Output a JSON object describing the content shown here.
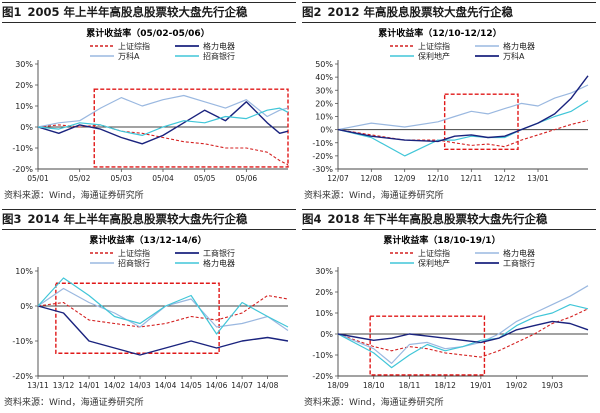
{
  "chart_data": [
    {
      "type": "line",
      "figure_label": "图1",
      "title": "2005 年上半年高股息股票较大盘先行企稳",
      "chart_title": "累计收益率（05/02-05/06）",
      "source": "资料来源：Wind，海通证券研究所",
      "ylim": [
        -20,
        30
      ],
      "yticks": [
        "30%",
        "20%",
        "10%",
        "0%",
        "-10%",
        "-20%"
      ],
      "yticks_values": [
        30,
        20,
        10,
        0,
        -10,
        -20
      ],
      "x_ticks": [
        "05/01",
        "05/02",
        "05/03",
        "05/04",
        "05/05",
        "05/06"
      ],
      "x_range": [
        0,
        6
      ],
      "highlight_x": [
        1.35,
        6.0
      ],
      "highlight_y": [
        -19,
        18
      ],
      "legend": {
        "placement": "top",
        "columns": 2
      },
      "series": [
        {
          "name": "上证综指",
          "color": "#d42020",
          "dash": true,
          "width": 1.1,
          "x": [
            0,
            0.5,
            1.0,
            1.5,
            2.0,
            2.5,
            3.0,
            3.5,
            4.0,
            4.5,
            5.0,
            5.5,
            5.8,
            6.0
          ],
          "values": [
            0,
            1,
            0,
            1,
            -2,
            -3,
            -5,
            -7,
            -8,
            -10,
            -10,
            -12,
            -16,
            -18
          ]
        },
        {
          "name": "格力电器",
          "color": "#1a237e",
          "dash": false,
          "width": 1.4,
          "x": [
            0,
            0.5,
            1.0,
            1.5,
            2.0,
            2.5,
            3.0,
            3.5,
            4.0,
            4.5,
            5.0,
            5.5,
            5.8,
            6.0
          ],
          "values": [
            0,
            -3,
            1,
            -1,
            -5,
            -8,
            -4,
            2,
            8,
            3,
            12,
            2,
            -3,
            -2
          ]
        },
        {
          "name": "万科A",
          "color": "#9ab8e0",
          "dash": false,
          "width": 1.2,
          "x": [
            0,
            0.5,
            1.0,
            1.5,
            2.0,
            2.5,
            3.0,
            3.5,
            4.0,
            4.5,
            5.0,
            5.5,
            5.8,
            6.0
          ],
          "values": [
            0,
            2,
            3,
            9,
            14,
            10,
            13,
            15,
            12,
            9,
            13,
            5,
            8,
            9
          ]
        },
        {
          "name": "招商银行",
          "color": "#40c6d8",
          "dash": false,
          "width": 1.2,
          "x": [
            0,
            0.5,
            1.0,
            1.5,
            2.0,
            2.5,
            3.0,
            3.5,
            4.0,
            4.5,
            5.0,
            5.5,
            5.8,
            6.0
          ],
          "values": [
            0,
            -1,
            2,
            1,
            -2,
            -4,
            0,
            3,
            2,
            5,
            4,
            8,
            9,
            7
          ]
        }
      ]
    },
    {
      "type": "line",
      "figure_label": "图2",
      "title": "2012 年高股息股票较大盘先行企稳",
      "chart_title": "累计收益率（12/10-12/12）",
      "source": "资料来源：Wind，海通证券研究所",
      "ylim": [
        -30,
        50
      ],
      "yticks": [
        "50%",
        "40%",
        "30%",
        "20%",
        "10%",
        "0%",
        "-10%",
        "-20%",
        "-30%"
      ],
      "yticks_values": [
        50,
        40,
        30,
        20,
        10,
        0,
        -10,
        -20,
        -30
      ],
      "x_ticks": [
        "12/07",
        "12/08",
        "12/09",
        "12/10",
        "12/11",
        "12/12",
        "13/01"
      ],
      "x_range": [
        0,
        7.5
      ],
      "highlight_x": [
        3.2,
        5.4
      ],
      "highlight_y": [
        -15,
        27
      ],
      "legend": {
        "placement": "top",
        "columns": 2
      },
      "series": [
        {
          "name": "上证综指",
          "color": "#d42020",
          "dash": true,
          "width": 1.1,
          "x": [
            0,
            1,
            2,
            3,
            3.5,
            4,
            4.5,
            5,
            5.5,
            6,
            6.5,
            7,
            7.5
          ],
          "values": [
            0,
            -4,
            -8,
            -8,
            -10,
            -12,
            -11,
            -13,
            -8,
            -4,
            0,
            4,
            7
          ]
        },
        {
          "name": "格力电器",
          "color": "#9ab8e0",
          "dash": false,
          "width": 1.2,
          "x": [
            0,
            1,
            2,
            3,
            3.5,
            4,
            4.5,
            5,
            5.5,
            6,
            6.5,
            7,
            7.5
          ],
          "values": [
            0,
            5,
            2,
            6,
            10,
            14,
            12,
            16,
            20,
            18,
            24,
            28,
            34
          ]
        },
        {
          "name": "保利地产",
          "color": "#40c6d8",
          "dash": false,
          "width": 1.2,
          "x": [
            0,
            1,
            2,
            3,
            3.5,
            4,
            4.5,
            5,
            5.5,
            6,
            6.5,
            7,
            7.5
          ],
          "values": [
            0,
            -6,
            -20,
            -8,
            -8,
            -5,
            -6,
            -6,
            0,
            5,
            10,
            14,
            22
          ]
        },
        {
          "name": "万科A",
          "color": "#1a237e",
          "dash": false,
          "width": 1.4,
          "x": [
            0,
            1,
            2,
            3,
            3.5,
            4,
            4.5,
            5,
            5.5,
            6,
            6.5,
            7,
            7.5
          ],
          "values": [
            0,
            -5,
            -8,
            -9,
            -5,
            -4,
            -6,
            -5,
            0,
            5,
            12,
            24,
            41
          ]
        }
      ]
    },
    {
      "type": "line",
      "figure_label": "图3",
      "title": "2014 年上半年高股息股票较大盘先行企稳",
      "chart_title": "累计收益率（13/12-14/6）",
      "source": "资料来源：Wind，海通证券研究所",
      "ylim": [
        -20,
        10
      ],
      "yticks": [
        "10%",
        "0%",
        "-10%",
        "-20%"
      ],
      "yticks_values": [
        10,
        0,
        -10,
        -20
      ],
      "x_ticks": [
        "13/11",
        "13/12",
        "14/01",
        "14/02",
        "14/03",
        "14/04",
        "14/05",
        "14/06",
        "14/07",
        "14/08"
      ],
      "x_range": [
        0,
        9.8
      ],
      "highlight_x": [
        0.7,
        7.1
      ],
      "highlight_y": [
        -13.5,
        6.5
      ],
      "legend": {
        "placement": "top",
        "columns": 2
      },
      "series": [
        {
          "name": "上证综指",
          "color": "#d42020",
          "dash": true,
          "width": 1.1,
          "x": [
            0,
            1,
            2,
            3,
            4,
            5,
            6,
            7,
            8,
            9,
            9.8
          ],
          "values": [
            0,
            1,
            -4,
            -5,
            -6,
            -5,
            -3,
            -4,
            -2,
            3,
            2
          ]
        },
        {
          "name": "工商银行",
          "color": "#1a237e",
          "dash": false,
          "width": 1.4,
          "x": [
            0,
            1,
            2,
            3,
            4,
            5,
            6,
            7,
            8,
            9,
            9.8
          ],
          "values": [
            0,
            -2,
            -10,
            -12,
            -14,
            -12,
            -10,
            -12,
            -10,
            -9,
            -10
          ]
        },
        {
          "name": "招商银行",
          "color": "#9ab8e0",
          "dash": false,
          "width": 1.2,
          "x": [
            0,
            1,
            2,
            3,
            4,
            5,
            6,
            7,
            8,
            9,
            9.8
          ],
          "values": [
            0,
            5,
            1,
            -2,
            -6,
            0,
            2,
            -6,
            -5,
            -3,
            -7
          ]
        },
        {
          "name": "格力电器",
          "color": "#40c6d8",
          "dash": false,
          "width": 1.2,
          "x": [
            0,
            1,
            2,
            3,
            4,
            5,
            6,
            7,
            8,
            9,
            9.8
          ],
          "values": [
            0,
            8,
            3,
            -3,
            -5,
            0,
            3,
            -8,
            1,
            -3,
            -6
          ]
        }
      ]
    },
    {
      "type": "line",
      "figure_label": "图4",
      "title": "2018 年下半年高股息股票较大盘先行企稳",
      "chart_title": "累计收益率（18/10-19/1）",
      "source": "资料来源：Wind，海通证券研究所",
      "ylim": [
        -20,
        30
      ],
      "yticks": [
        "30%",
        "20%",
        "10%",
        "0%",
        "-10%",
        "-20%"
      ],
      "yticks_values": [
        30,
        20,
        10,
        0,
        -10,
        -20
      ],
      "x_ticks": [
        "18/09",
        "18/10",
        "18/11",
        "18/12",
        "19/01",
        "19/02",
        "19/03"
      ],
      "x_range": [
        0,
        7.0
      ],
      "highlight_x": [
        0.9,
        4.1
      ],
      "highlight_y": [
        -19.5,
        8.5
      ],
      "legend": {
        "placement": "top",
        "columns": 2
      },
      "series": [
        {
          "name": "上证综指",
          "color": "#d42020",
          "dash": true,
          "width": 1.1,
          "x": [
            0,
            1,
            1.5,
            2,
            2.5,
            3,
            3.5,
            4,
            4.5,
            5,
            5.5,
            6,
            6.5,
            7
          ],
          "values": [
            0,
            -6,
            -8,
            -6,
            -7,
            -9,
            -10,
            -11,
            -8,
            -4,
            0,
            5,
            8,
            12
          ]
        },
        {
          "name": "格力电器",
          "color": "#9ab8e0",
          "dash": false,
          "width": 1.2,
          "x": [
            0,
            1,
            1.5,
            2,
            2.5,
            3,
            3.5,
            4,
            4.5,
            5,
            5.5,
            6,
            6.5,
            7
          ],
          "values": [
            0,
            -7,
            -14,
            -5,
            -4,
            -7,
            -6,
            -4,
            0,
            6,
            10,
            14,
            18,
            23
          ]
        },
        {
          "name": "保利地产",
          "color": "#40c6d8",
          "dash": false,
          "width": 1.2,
          "x": [
            0,
            1,
            1.5,
            2,
            2.5,
            3,
            3.5,
            4,
            4.5,
            5,
            5.5,
            6,
            6.5,
            7
          ],
          "values": [
            0,
            -9,
            -16,
            -10,
            -5,
            -8,
            -6,
            -3,
            -2,
            4,
            8,
            10,
            14,
            12
          ]
        },
        {
          "name": "工商银行",
          "color": "#1a237e",
          "dash": false,
          "width": 1.4,
          "x": [
            0,
            1,
            1.5,
            2,
            2.5,
            3,
            3.5,
            4,
            4.5,
            5,
            5.5,
            6,
            6.5,
            7
          ],
          "values": [
            0,
            -3,
            -2,
            0,
            -1,
            -2,
            -3,
            -4,
            -2,
            2,
            4,
            6,
            5,
            2
          ]
        }
      ]
    }
  ]
}
